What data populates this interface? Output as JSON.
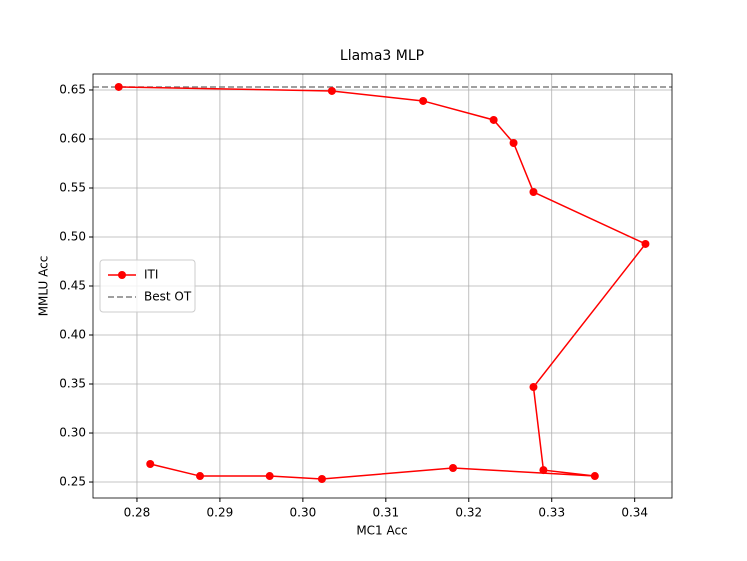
{
  "chart_data": {
    "type": "line",
    "title": "Llama3 MLP",
    "x_label": "MC1 Acc",
    "y_label": "MMLU Acc",
    "series": [
      {
        "name": "ITI",
        "color": "#ff0000",
        "x": [
          0.2778,
          0.3035,
          0.3145,
          0.323,
          0.3254,
          0.3278,
          0.3413,
          0.3278,
          0.329,
          0.3352,
          0.3181,
          0.3023,
          0.296,
          0.2876,
          0.2816
        ],
        "values": [
          0.6531,
          0.649,
          0.6388,
          0.6194,
          0.5959,
          0.5459,
          0.4929,
          0.3469,
          0.2622,
          0.2561,
          0.2643,
          0.2531,
          0.2561,
          0.2561,
          0.2684
        ]
      }
    ],
    "reference_lines": [
      {
        "name": "Best OT",
        "y": 0.653,
        "color": "#808080",
        "style": "dashed"
      }
    ],
    "xlim": [
      0.2747,
      0.3445
    ],
    "xticks": [
      0.28,
      0.29,
      {
        "value": 0.3,
        "label": "0.30"
      },
      0.31,
      0.32,
      0.33,
      0.34
    ],
    "ylim": [
      0.2337,
      0.6663
    ],
    "yticks": [
      0.25,
      {
        "value": 0.3,
        "label": "0.30"
      },
      0.35,
      {
        "value": 0.4,
        "label": "0.40"
      },
      0.45,
      {
        "value": 0.5,
        "label": "0.50"
      },
      0.55,
      {
        "value": 0.6,
        "label": "0.60"
      },
      0.65
    ],
    "grid": true,
    "legend": "center left"
  }
}
